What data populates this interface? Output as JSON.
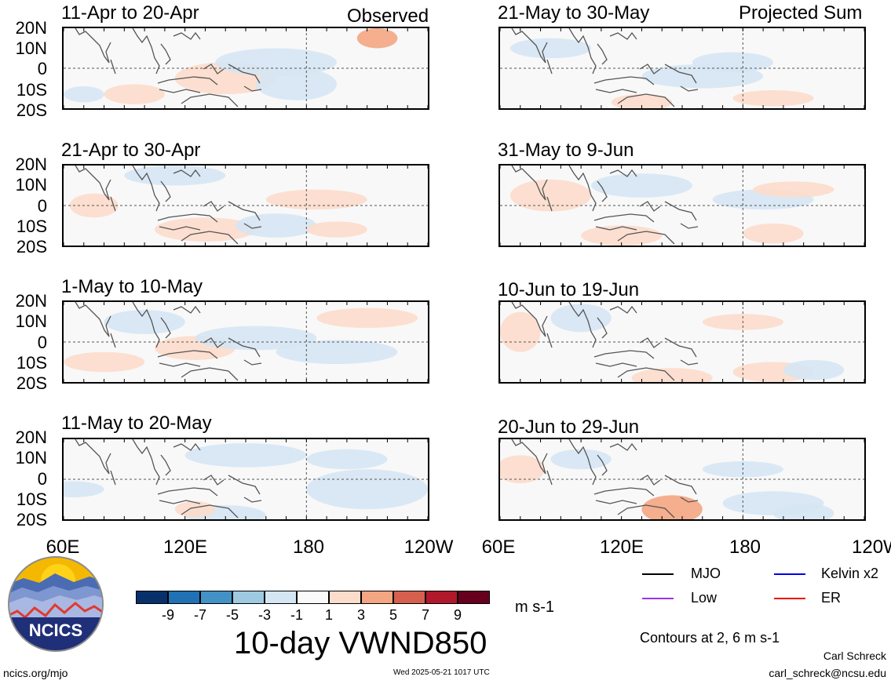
{
  "header": {
    "observed": "Observed",
    "projected": "Projected Sum"
  },
  "lat_labels": [
    "20N",
    "10N",
    "0",
    "10S",
    "20S"
  ],
  "lon_labels": [
    "60E",
    "120E",
    "180",
    "120W"
  ],
  "panels": [
    {
      "title": "11-Apr to 20-Apr",
      "kind": "observed"
    },
    {
      "title": "21-Apr to 30-Apr",
      "kind": "observed"
    },
    {
      "title": "1-May to 10-May",
      "kind": "observed"
    },
    {
      "title": "11-May to 20-May",
      "kind": "observed"
    },
    {
      "title": "21-May to 30-May",
      "kind": "projected"
    },
    {
      "title": "31-May to 9-Jun",
      "kind": "projected"
    },
    {
      "title": "10-Jun to 19-Jun",
      "kind": "projected"
    },
    {
      "title": "20-Jun to 29-Jun",
      "kind": "projected"
    }
  ],
  "colorbar": {
    "colors": [
      "#08306b",
      "#2171b5",
      "#4292c6",
      "#9ecae1",
      "#d5e6f3",
      "#fafafa",
      "#fcdccb",
      "#f4a582",
      "#d6604d",
      "#b2182b",
      "#67001f"
    ],
    "labels": [
      "-9",
      "-7",
      "-5",
      "-3",
      "-1",
      "1",
      "3",
      "5",
      "7",
      "9"
    ],
    "units": "m s-1"
  },
  "title": "10-day VWND850",
  "legend": {
    "items": [
      {
        "label": "MJO",
        "color": "#000000"
      },
      {
        "label": "Low",
        "color": "#9933ee"
      },
      {
        "label": "Kelvin x2",
        "color": "#0000ee"
      },
      {
        "label": "ER",
        "color": "#ee0000"
      }
    ],
    "contours": "Contours at 2, 6 m s-1"
  },
  "logo": {
    "text": "NCICS"
  },
  "footer": {
    "url": "ncics.org/mjo",
    "timestamp": "Wed 2025-05-21 1017 UTC",
    "author": "Carl Schreck",
    "email": "carl_schreck@ncsu.edu"
  }
}
